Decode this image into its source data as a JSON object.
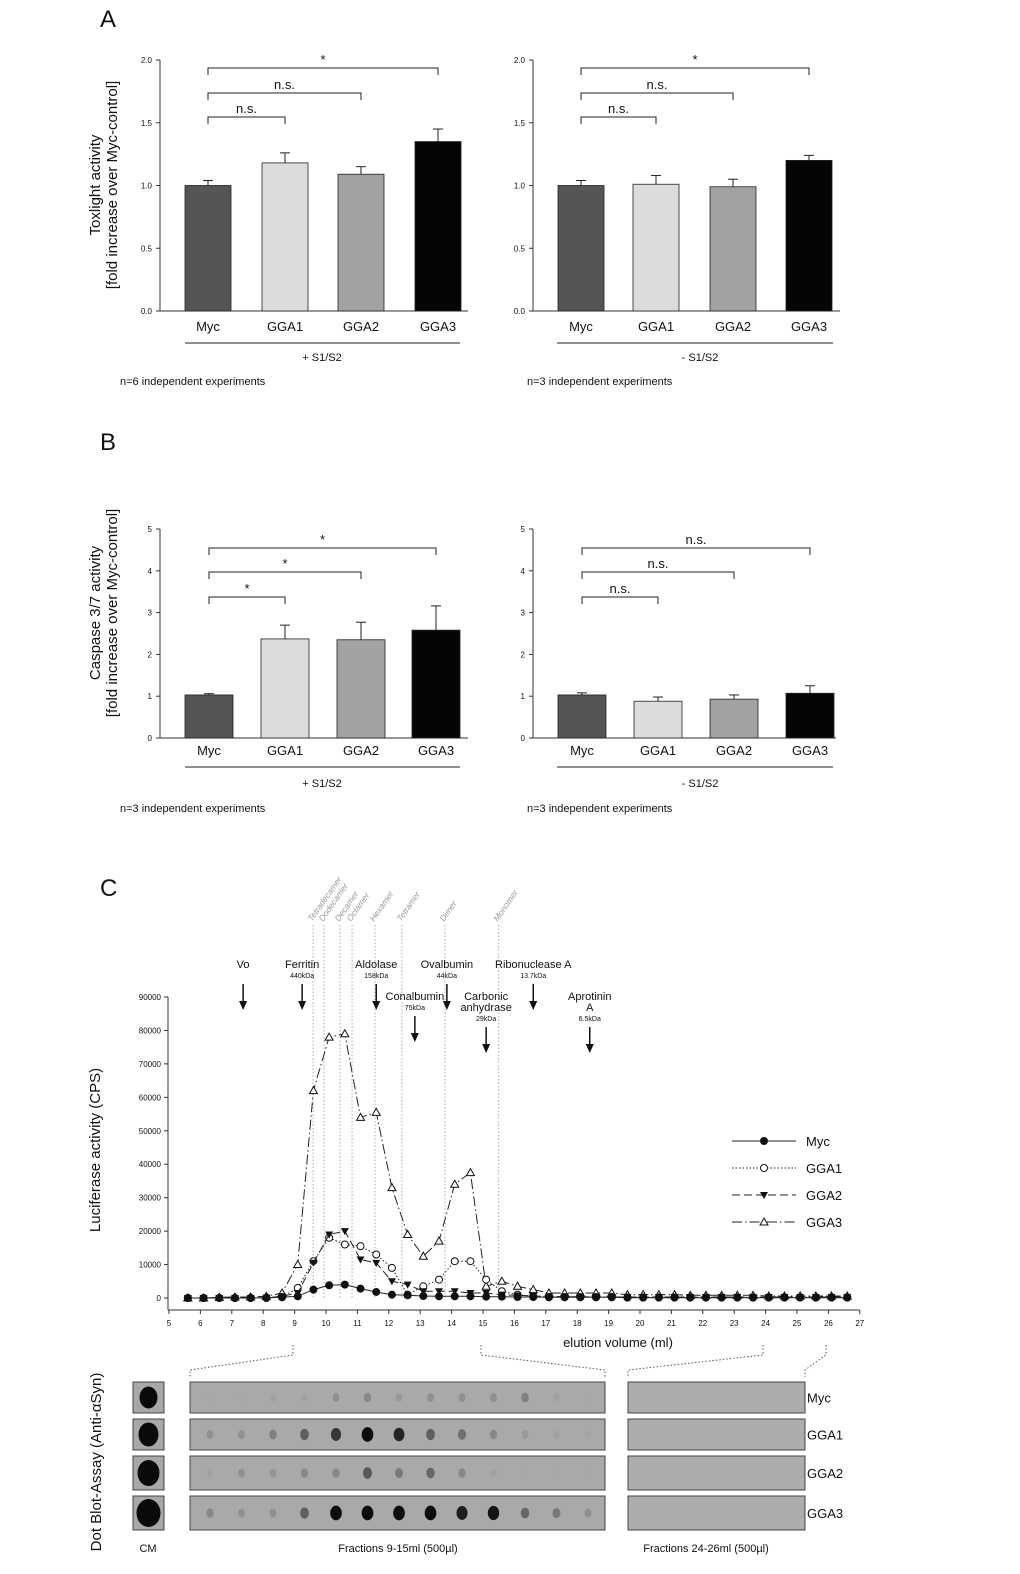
{
  "panels": {
    "A": {
      "letter": "A",
      "ylabel": [
        "Toxlight activity",
        "[fold increase over Myc-control]"
      ]
    },
    "B": {
      "letter": "B",
      "ylabel": [
        "Caspase 3/7 activity",
        "[fold increase over Myc-control]"
      ]
    },
    "C": {
      "letter": "C",
      "ylabel": "Luciferase activity (CPS)",
      "xlabel": "elution volume (ml)"
    }
  },
  "colors": {
    "Myc": "#555555",
    "GGA1": "#dcdcdc",
    "GGA2": "#a2a2a2",
    "GGA3": "#050505"
  },
  "chart_data": [
    {
      "type": "bar",
      "panel": "A",
      "group_label": "+ S1/S2",
      "note": "n=6 independent experiments",
      "categories": [
        "Myc",
        "GGA1",
        "GGA2",
        "GGA3"
      ],
      "values": [
        1.0,
        1.18,
        1.09,
        1.35
      ],
      "errors": [
        0.04,
        0.08,
        0.06,
        0.1
      ],
      "ylim": [
        0,
        2.0
      ],
      "yticks": [
        "0.0",
        "0.5",
        "1.0",
        "1.5",
        "2.0"
      ],
      "brackets": [
        {
          "from": 0,
          "to": 3,
          "label": "*"
        },
        {
          "from": 0,
          "to": 2,
          "label": "n.s."
        },
        {
          "from": 0,
          "to": 1,
          "label": "n.s."
        }
      ]
    },
    {
      "type": "bar",
      "panel": "A",
      "group_label": "- S1/S2",
      "note": "n=3 independent experiments",
      "categories": [
        "Myc",
        "GGA1",
        "GGA2",
        "GGA3"
      ],
      "values": [
        1.0,
        1.01,
        0.99,
        1.2
      ],
      "errors": [
        0.04,
        0.07,
        0.06,
        0.04
      ],
      "ylim": [
        0,
        2.0
      ],
      "yticks": [
        "0.0",
        "0.5",
        "1.0",
        "1.5",
        "2.0"
      ],
      "brackets": [
        {
          "from": 0,
          "to": 3,
          "label": "*"
        },
        {
          "from": 0,
          "to": 2,
          "label": "n.s."
        },
        {
          "from": 0,
          "to": 1,
          "label": "n.s."
        }
      ]
    },
    {
      "type": "bar",
      "panel": "B",
      "group_label": "+ S1/S2",
      "note": "n=3 independent experiments",
      "categories": [
        "Myc",
        "GGA1",
        "GGA2",
        "GGA3"
      ],
      "values": [
        1.03,
        2.37,
        2.35,
        2.58
      ],
      "errors": [
        0.03,
        0.33,
        0.42,
        0.58
      ],
      "ylim": [
        0,
        5
      ],
      "yticks": [
        "0",
        "1",
        "2",
        "3",
        "4",
        "5"
      ],
      "brackets": [
        {
          "from": 0,
          "to": 3,
          "label": "*"
        },
        {
          "from": 0,
          "to": 2,
          "label": "*"
        },
        {
          "from": 0,
          "to": 1,
          "label": "*"
        }
      ]
    },
    {
      "type": "bar",
      "panel": "B",
      "group_label": "- S1/S2",
      "note": "n=3 independent experiments",
      "categories": [
        "Myc",
        "GGA1",
        "GGA2",
        "GGA3"
      ],
      "values": [
        1.03,
        0.88,
        0.93,
        1.07
      ],
      "errors": [
        0.05,
        0.1,
        0.1,
        0.18
      ],
      "ylim": [
        0,
        5
      ],
      "yticks": [
        "0",
        "1",
        "2",
        "3",
        "4",
        "5"
      ],
      "brackets": [
        {
          "from": 0,
          "to": 3,
          "label": "n.s."
        },
        {
          "from": 0,
          "to": 2,
          "label": "n.s."
        },
        {
          "from": 0,
          "to": 1,
          "label": "n.s."
        }
      ]
    },
    {
      "type": "line",
      "panel": "C",
      "xlabel": "elution volume (ml)",
      "ylabel": "Luciferase activity (CPS)",
      "xlim": [
        5,
        27
      ],
      "ylim": [
        0,
        90000
      ],
      "xticks": [
        "5",
        "6",
        "7",
        "8",
        "9",
        "10",
        "11",
        "12",
        "13",
        "14",
        "15",
        "16",
        "17",
        "18",
        "19",
        "20",
        "21",
        "22",
        "23",
        "24",
        "25",
        "26",
        "27"
      ],
      "yticks": [
        "0",
        "10000",
        "20000",
        "30000",
        "40000",
        "50000",
        "60000",
        "70000",
        "80000",
        "90000"
      ],
      "x": [
        5.6,
        6.1,
        6.6,
        7.1,
        7.6,
        8.1,
        8.6,
        9.1,
        9.6,
        10.1,
        10.6,
        11.1,
        11.6,
        12.1,
        12.6,
        13.1,
        13.6,
        14.1,
        14.6,
        15.1,
        15.6,
        16.1,
        16.6,
        17.1,
        17.6,
        18.1,
        18.6,
        19.1,
        19.6,
        20.1,
        20.6,
        21.1,
        21.6,
        22.1,
        22.6,
        23.1,
        23.6,
        24.1,
        24.6,
        25.1,
        25.6,
        26.1,
        26.6
      ],
      "legend_position": "right",
      "series": [
        {
          "name": "Myc",
          "marker": "filled-circle",
          "line": "solid",
          "values": [
            0,
            0,
            0,
            0,
            0,
            100,
            200,
            500,
            2500,
            3800,
            4000,
            2800,
            1800,
            1000,
            800,
            600,
            500,
            500,
            500,
            400,
            400,
            300,
            300,
            200,
            200,
            200,
            200,
            200,
            100,
            100,
            100,
            100,
            100,
            100,
            100,
            100,
            100,
            100,
            100,
            100,
            100,
            100,
            100
          ]
        },
        {
          "name": "GGA1",
          "marker": "open-circle",
          "line": "dotted",
          "values": [
            0,
            0,
            0,
            0,
            0,
            0,
            300,
            3000,
            11000,
            18000,
            16000,
            15500,
            13000,
            9000,
            1000,
            3500,
            5500,
            11000,
            11000,
            5500,
            2000,
            1000,
            500,
            300,
            300,
            300,
            300,
            300,
            200,
            200,
            200,
            200,
            200,
            200,
            200,
            200,
            200,
            200,
            200,
            200,
            200,
            200,
            200
          ]
        },
        {
          "name": "GGA2",
          "marker": "filled-triangle-down",
          "line": "dashed",
          "values": [
            0,
            0,
            0,
            0,
            0,
            100,
            500,
            1500,
            10500,
            19000,
            20000,
            11500,
            10500,
            5000,
            4000,
            2000,
            2000,
            2000,
            1500,
            1500,
            1000,
            800,
            600,
            500,
            400,
            400,
            300,
            300,
            300,
            300,
            300,
            300,
            300,
            300,
            300,
            300,
            300,
            300,
            300,
            300,
            300,
            300,
            300
          ]
        },
        {
          "name": "GGA3",
          "marker": "open-triangle-up",
          "line": "dash-dot",
          "values": [
            0,
            0,
            200,
            300,
            300,
            500,
            1500,
            10000,
            62000,
            78000,
            79000,
            54000,
            55500,
            33000,
            19000,
            12500,
            17000,
            34000,
            37500,
            3500,
            5000,
            3500,
            2500,
            1500,
            1500,
            1500,
            1500,
            1500,
            1000,
            1000,
            1000,
            1000,
            800,
            800,
            800,
            800,
            800,
            600,
            600,
            600,
            600,
            600,
            600
          ]
        }
      ],
      "oligomer_lines": [
        {
          "label": "Tetradecamer",
          "x": 9.59
        },
        {
          "label": "Dodecamer",
          "x": 9.94
        },
        {
          "label": "Decamer",
          "x": 10.45
        },
        {
          "label": "Octamer",
          "x": 10.83
        },
        {
          "label": "Hexamer",
          "x": 11.56
        },
        {
          "label": "Tetramer",
          "x": 12.42
        },
        {
          "label": "Dimer",
          "x": 13.79
        },
        {
          "label": "Monomer",
          "x": 15.5
        }
      ],
      "markers": [
        {
          "name": "Vo",
          "mw": "",
          "x": 7.36,
          "row": 1
        },
        {
          "name": "Ferritin",
          "mw": "440kDa",
          "x": 9.24,
          "row": 1
        },
        {
          "name": "Aldolase",
          "mw": "158kDa",
          "x": 11.6,
          "row": 1
        },
        {
          "name": "Conalbumin",
          "mw": "75kDa",
          "x": 12.83,
          "row": 2
        },
        {
          "name": "Ovalbumin",
          "mw": "44kDa",
          "x": 13.85,
          "row": 1
        },
        {
          "name": "Carbonic anhydrase",
          "mw": "29kDa",
          "x": 15.1,
          "row": 2
        },
        {
          "name": "Ribonuclease A",
          "mw": "13.7kDa",
          "x": 16.6,
          "row": 1
        },
        {
          "name": "Aprotinin A",
          "mw": "6.5kDa",
          "x": 18.4,
          "row": 2
        }
      ]
    }
  ],
  "dot_blot": {
    "ylabel": "Dot Blot-Assay (Anti-αSyn)",
    "cm_label": "CM",
    "fractions_a_label": "Fractions 9-15ml (500µl)",
    "fractions_b_label": "Fractions 24-26ml (500µl)",
    "rows": [
      {
        "name": "Myc",
        "intensity": [
          0,
          0,
          0.05,
          0.05,
          0.15,
          0.2,
          0.1,
          0.15,
          0.15,
          0.15,
          0.25,
          0.05,
          0
        ]
      },
      {
        "name": "GGA1",
        "intensity": [
          0.15,
          0.15,
          0.25,
          0.45,
          0.7,
          0.95,
          0.8,
          0.45,
          0.35,
          0.2,
          0.1,
          0.05,
          0.03
        ]
      },
      {
        "name": "GGA2",
        "intensity": [
          0.05,
          0.15,
          0.12,
          0.2,
          0.2,
          0.5,
          0.3,
          0.4,
          0.2,
          0.05,
          0,
          0,
          0
        ]
      },
      {
        "name": "GGA3",
        "intensity": [
          0.2,
          0.15,
          0.15,
          0.45,
          0.95,
          0.95,
          0.95,
          0.95,
          0.85,
          0.9,
          0.4,
          0.3,
          0.15
        ]
      }
    ]
  }
}
